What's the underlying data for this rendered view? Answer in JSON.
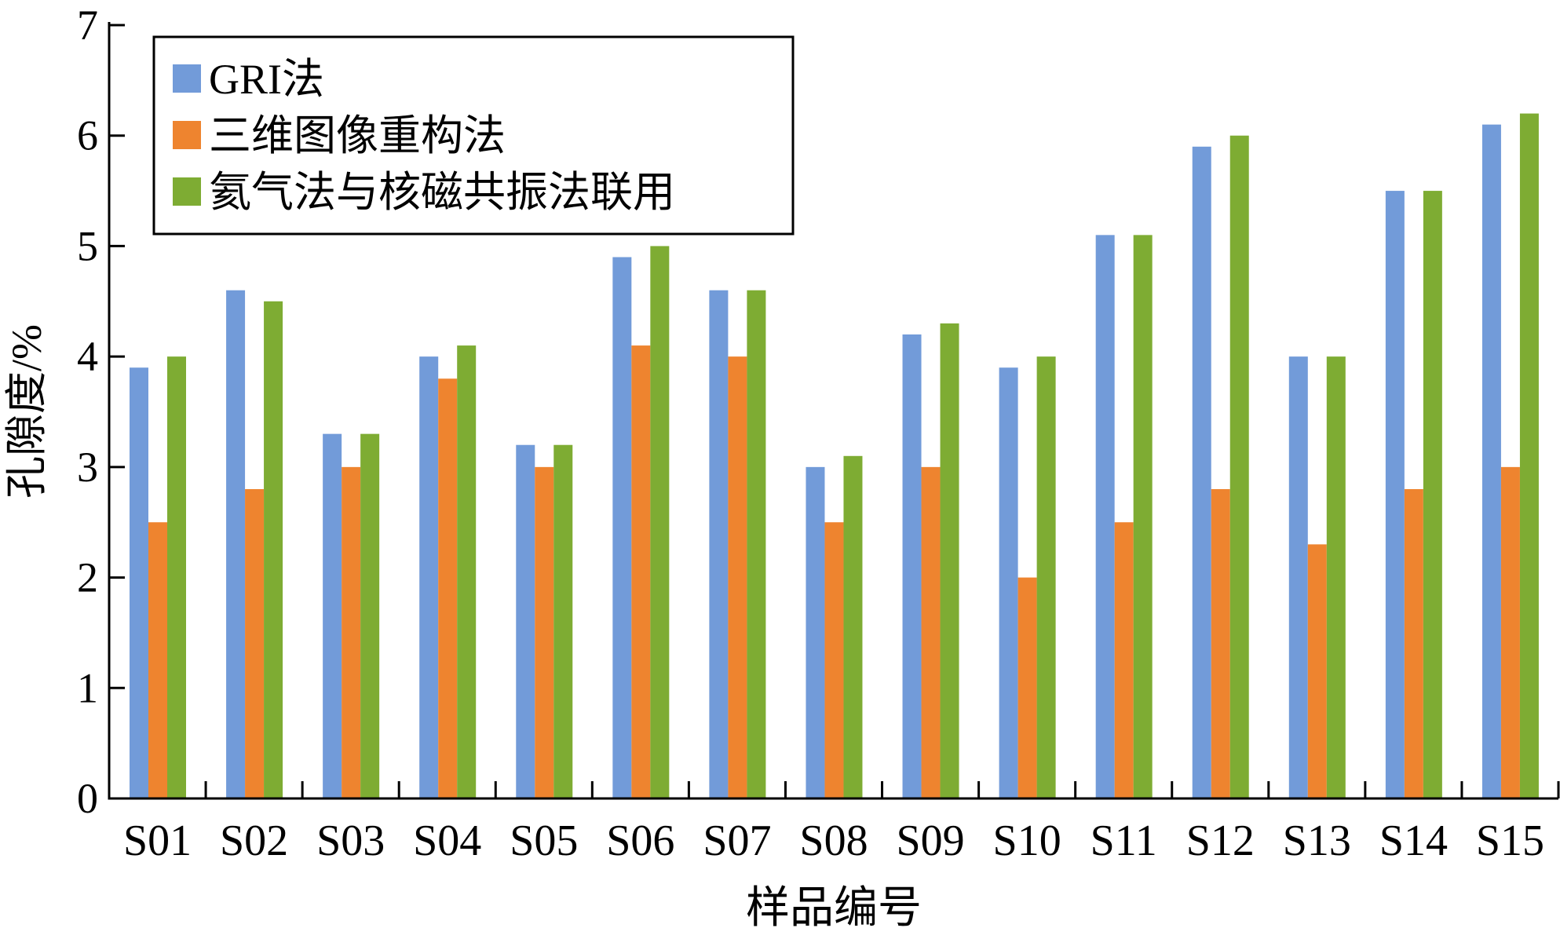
{
  "chart_data": {
    "type": "bar",
    "title": "",
    "xlabel": "样品编号",
    "ylabel": "孔隙度/%",
    "ylim": [
      0,
      7
    ],
    "yticks": [
      "0",
      "1",
      "2",
      "3",
      "4",
      "5",
      "6",
      "7"
    ],
    "categories": [
      "S01",
      "S02",
      "S03",
      "S04",
      "S05",
      "S06",
      "S07",
      "S08",
      "S09",
      "S10",
      "S11",
      "S12",
      "S13",
      "S14",
      "S15"
    ],
    "legend_position": "top-left",
    "series": [
      {
        "name": "GRI法",
        "color": "#729bd9",
        "values": [
          3.9,
          4.6,
          3.3,
          4.0,
          3.2,
          4.9,
          4.6,
          3.0,
          4.2,
          3.9,
          5.1,
          5.9,
          4.0,
          5.5,
          6.1
        ]
      },
      {
        "name": "三维图像重构法",
        "color": "#ee842f",
        "values": [
          2.5,
          2.8,
          3.0,
          3.8,
          3.0,
          4.1,
          4.0,
          2.5,
          3.0,
          2.0,
          2.5,
          2.8,
          2.3,
          2.8,
          3.0
        ]
      },
      {
        "name": "氦气法与核磁共振法联用",
        "color": "#7eac33",
        "values": [
          4.0,
          4.5,
          3.3,
          4.1,
          3.2,
          5.0,
          4.6,
          3.1,
          4.3,
          4.0,
          5.1,
          6.0,
          4.0,
          5.5,
          6.2
        ]
      }
    ]
  }
}
